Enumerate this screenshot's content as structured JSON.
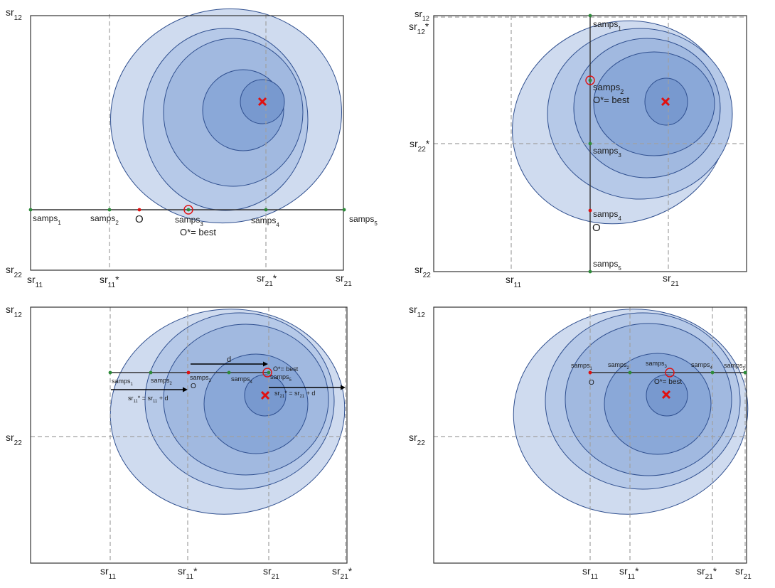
{
  "colors": {
    "ellipse_fills": [
      "#cfdbef",
      "#b6c9e8",
      "#a1b9e0",
      "#8aa8d8",
      "#7899cf"
    ],
    "ellipse_stroke": "#2f4f8f",
    "optimum_marker": "#e01010",
    "current_point": "#e01010",
    "sample_point": "#2e8b3a",
    "best_ring": "#e01010",
    "frame": "#333333",
    "dashed_line": "#a0a0a0"
  },
  "icons": {
    "optimum": "red-x-icon",
    "best": "red-circle-icon"
  },
  "panels": [
    {
      "id": "top-left",
      "axis_labels": [
        {
          "base": "sr",
          "sub": "12",
          "suffix": ""
        },
        {
          "base": "sr",
          "sub": "22",
          "suffix": ""
        },
        {
          "base": "sr",
          "sub": "11",
          "suffix": ""
        },
        {
          "base": "sr",
          "sub": "11",
          "suffix": "*"
        },
        {
          "base": "sr",
          "sub": "21",
          "suffix": "*"
        },
        {
          "base": "sr",
          "sub": "21",
          "suffix": ""
        }
      ],
      "samples": [
        {
          "base": "samps",
          "sub": "1"
        },
        {
          "base": "samps",
          "sub": "2"
        },
        {
          "base": "samps",
          "sub": "3"
        },
        {
          "base": "samps",
          "sub": "4"
        },
        {
          "base": "samps",
          "sub": "5"
        }
      ],
      "origin_label": "O",
      "best_label": "O*= best"
    },
    {
      "id": "top-right",
      "axis_labels": [
        {
          "base": "sr",
          "sub": "12",
          "suffix": ""
        },
        {
          "base": "sr",
          "sub": "12",
          "suffix": "*"
        },
        {
          "base": "sr",
          "sub": "22",
          "suffix": "*"
        },
        {
          "base": "sr",
          "sub": "22",
          "suffix": ""
        },
        {
          "base": "sr",
          "sub": "11",
          "suffix": ""
        },
        {
          "base": "sr",
          "sub": "21",
          "suffix": ""
        }
      ],
      "samples": [
        {
          "base": "samps",
          "sub": "1"
        },
        {
          "base": "samps",
          "sub": "2"
        },
        {
          "base": "samps",
          "sub": "3"
        },
        {
          "base": "samps",
          "sub": "4"
        },
        {
          "base": "samps",
          "sub": "5"
        }
      ],
      "origin_label": "O",
      "best_label": "O*= best"
    },
    {
      "id": "bottom-left",
      "axis_labels": [
        {
          "base": "sr",
          "sub": "12",
          "suffix": ""
        },
        {
          "base": "sr",
          "sub": "22",
          "suffix": ""
        },
        {
          "base": "sr",
          "sub": "11",
          "suffix": ""
        },
        {
          "base": "sr",
          "sub": "11",
          "suffix": "*"
        },
        {
          "base": "sr",
          "sub": "21",
          "suffix": ""
        },
        {
          "base": "sr",
          "sub": "21",
          "suffix": "*"
        }
      ],
      "samples": [
        {
          "base": "samps",
          "sub": "1"
        },
        {
          "base": "samps",
          "sub": "2"
        },
        {
          "base": "samps",
          "sub": "3"
        },
        {
          "base": "samps",
          "sub": "4"
        },
        {
          "base": "samps",
          "sub": "5"
        }
      ],
      "origin_label": "O",
      "best_label": "O*= best",
      "arrow_label": "d",
      "equations": [
        {
          "base": "sr",
          "sub": "11",
          "rest": "* = sr",
          "sub2": "11",
          "tail": " + d"
        },
        {
          "base": "sr",
          "sub": "21",
          "rest": "* = sr",
          "sub2": "21",
          "tail": " + d"
        }
      ]
    },
    {
      "id": "bottom-right",
      "axis_labels": [
        {
          "base": "sr",
          "sub": "12",
          "suffix": ""
        },
        {
          "base": "sr",
          "sub": "22",
          "suffix": ""
        },
        {
          "base": "sr",
          "sub": "11",
          "suffix": ""
        },
        {
          "base": "sr",
          "sub": "11",
          "suffix": "*"
        },
        {
          "base": "sr",
          "sub": "21",
          "suffix": "*"
        },
        {
          "base": "sr",
          "sub": "21",
          "suffix": ""
        }
      ],
      "samples": [
        {
          "base": "samps",
          "sub": "1"
        },
        {
          "base": "samps",
          "sub": "2"
        },
        {
          "base": "samps",
          "sub": "3"
        },
        {
          "base": "samps",
          "sub": "4"
        },
        {
          "base": "samps",
          "sub": "5"
        }
      ],
      "origin_label": "O",
      "best_label": "O*= best"
    }
  ]
}
